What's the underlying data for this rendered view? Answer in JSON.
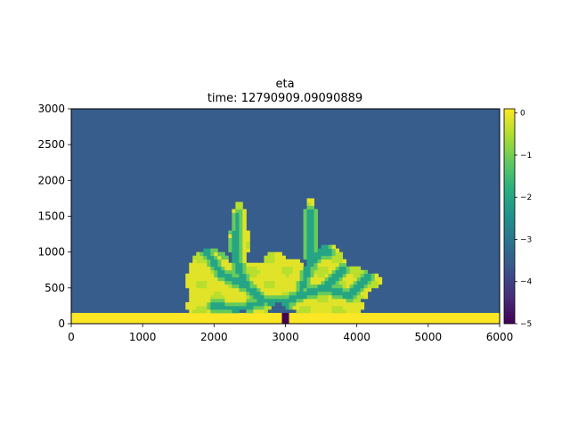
{
  "chart_data": {
    "type": "heatmap",
    "title": "eta",
    "subtitle": "time: 12790909.09090889",
    "xlabel": "",
    "ylabel": "",
    "xlim": [
      0,
      6000
    ],
    "ylim": [
      0,
      3000
    ],
    "x_ticks": [
      "0",
      "1000",
      "2000",
      "3000",
      "4000",
      "5000",
      "6000"
    ],
    "y_ticks": [
      "0",
      "500",
      "1000",
      "1500",
      "2000",
      "2500",
      "3000"
    ],
    "colorbar": {
      "colormap": "viridis",
      "range": [
        -5,
        0.1
      ],
      "ticks": [
        "0",
        "−1",
        "−2",
        "−3",
        "−4",
        "−5"
      ],
      "tick_values": [
        0,
        -1,
        -2,
        -3,
        -4,
        -5
      ]
    },
    "basin_value": -3.5,
    "land_value": 0.1,
    "channel_value": -2,
    "inlet_value": -5,
    "coast": {
      "y_top": 150
    },
    "inlet": {
      "x": [
        2940,
        3040
      ],
      "y": [
        0,
        150
      ]
    },
    "delta_lobes": [
      {
        "cx": 1950,
        "cy": 600,
        "rx": 330,
        "ry": 450
      },
      {
        "cx": 2350,
        "cy": 1150,
        "rx": 130,
        "ry": 550
      },
      {
        "cx": 2600,
        "cy": 500,
        "rx": 350,
        "ry": 350
      },
      {
        "cx": 2850,
        "cy": 700,
        "rx": 200,
        "ry": 300
      },
      {
        "cx": 3100,
        "cy": 550,
        "rx": 250,
        "ry": 350
      },
      {
        "cx": 3350,
        "cy": 1250,
        "rx": 110,
        "ry": 500
      },
      {
        "cx": 3600,
        "cy": 650,
        "rx": 280,
        "ry": 450
      },
      {
        "cx": 3950,
        "cy": 550,
        "rx": 250,
        "ry": 250
      },
      {
        "cx": 4200,
        "cy": 600,
        "rx": 130,
        "ry": 120
      },
      {
        "cx": 2000,
        "cy": 250,
        "rx": 400,
        "ry": 200
      },
      {
        "cx": 3600,
        "cy": 250,
        "rx": 500,
        "ry": 200
      }
    ],
    "channels": [
      [
        [
          2990,
          0
        ],
        [
          2990,
          280
        ],
        [
          2700,
          330
        ],
        [
          2450,
          520
        ],
        [
          2300,
          900
        ],
        [
          2330,
          1500
        ]
      ],
      [
        [
          2990,
          280
        ],
        [
          3200,
          400
        ],
        [
          3330,
          800
        ],
        [
          3350,
          1550
        ]
      ],
      [
        [
          3200,
          400
        ],
        [
          3550,
          500
        ],
        [
          3800,
          750
        ]
      ],
      [
        [
          2450,
          520
        ],
        [
          2100,
          700
        ],
        [
          1900,
          1000
        ]
      ],
      [
        [
          2700,
          330
        ],
        [
          2400,
          200
        ],
        [
          2000,
          250
        ]
      ],
      [
        [
          3330,
          800
        ],
        [
          3550,
          1050
        ],
        [
          3600,
          1000
        ]
      ],
      [
        [
          2300,
          900
        ],
        [
          2050,
          1100
        ],
        [
          2150,
          1300
        ]
      ],
      [
        [
          3550,
          500
        ],
        [
          3900,
          400
        ],
        [
          4150,
          650
        ]
      ]
    ]
  }
}
